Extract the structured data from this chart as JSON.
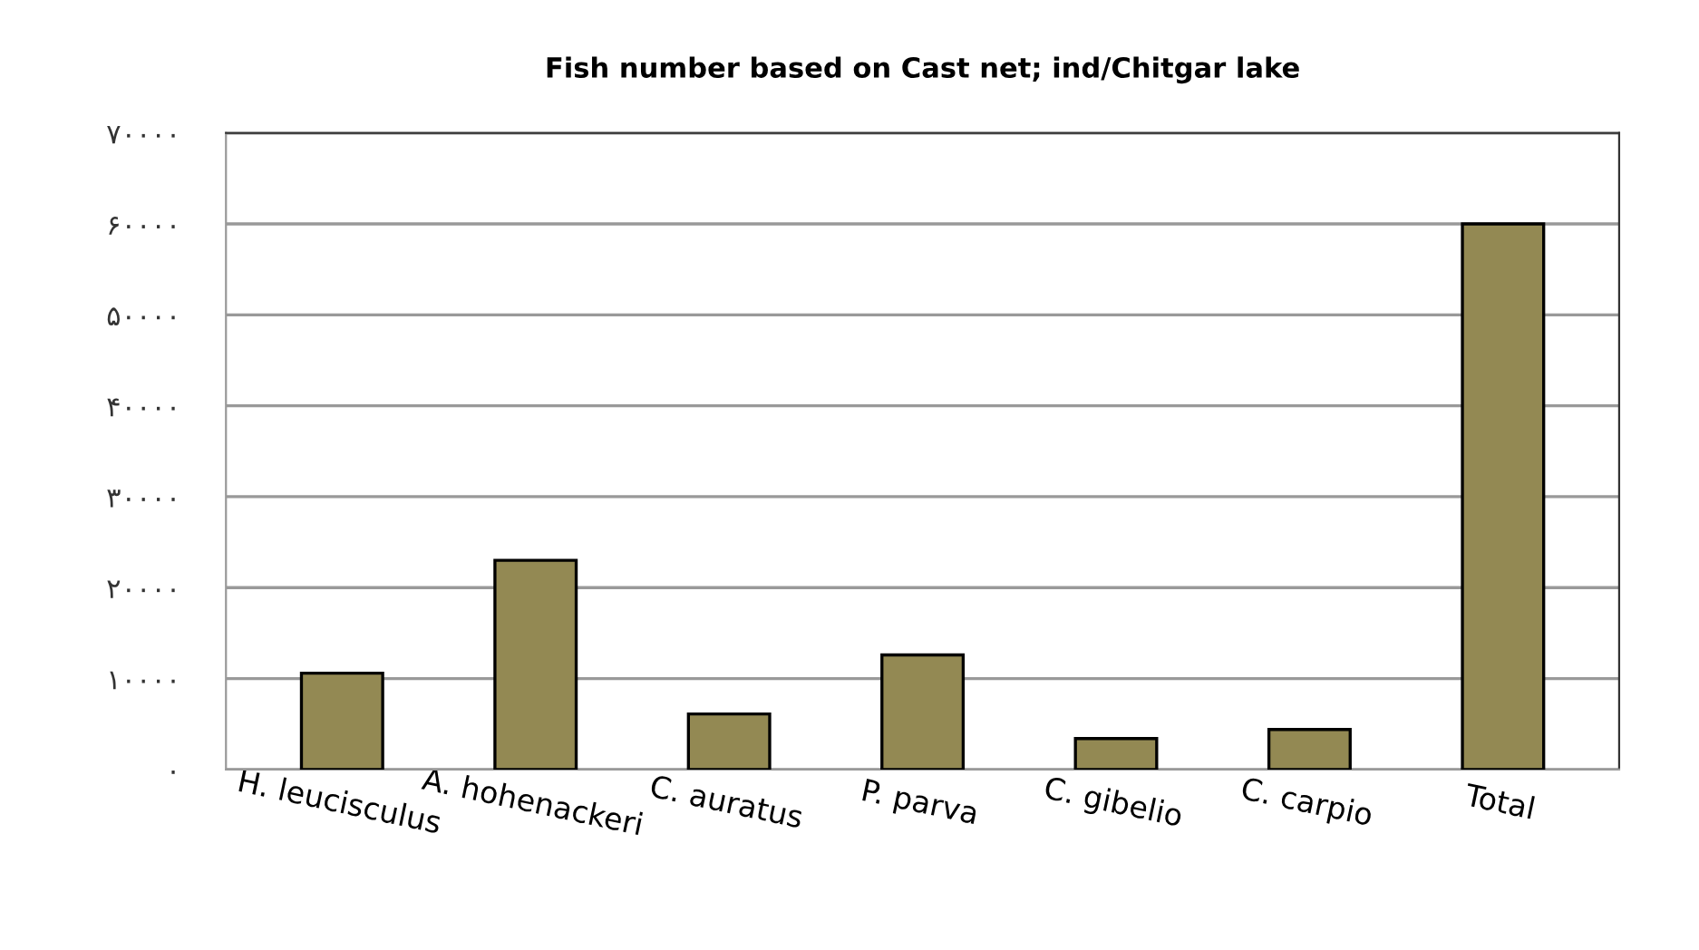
{
  "chart_data": {
    "type": "bar",
    "title": "Fish number based on Cast net; ind/Chitgar lake",
    "categories": [
      "H. leucisculus",
      "A. hohenackeri",
      "C. auratus",
      "P. parva",
      "C. gibelio",
      "C. carpio",
      "Total"
    ],
    "values": [
      10600,
      23000,
      6100,
      12600,
      3400,
      4400,
      60000
    ],
    "color": "#938953",
    "ylim": [
      0,
      70000
    ],
    "yticks": [
      {
        "value": 0,
        "label": "۰"
      },
      {
        "value": 10000,
        "label": "۱۰۰۰۰"
      },
      {
        "value": 20000,
        "label": "۲۰۰۰۰"
      },
      {
        "value": 30000,
        "label": "۳۰۰۰۰"
      },
      {
        "value": 40000,
        "label": "۴۰۰۰۰"
      },
      {
        "value": 50000,
        "label": "۵۰۰۰۰"
      },
      {
        "value": 60000,
        "label": "۶۰۰۰۰"
      },
      {
        "value": 70000,
        "label": "۷۰۰۰۰"
      }
    ],
    "grid": "y",
    "legend": false
  }
}
